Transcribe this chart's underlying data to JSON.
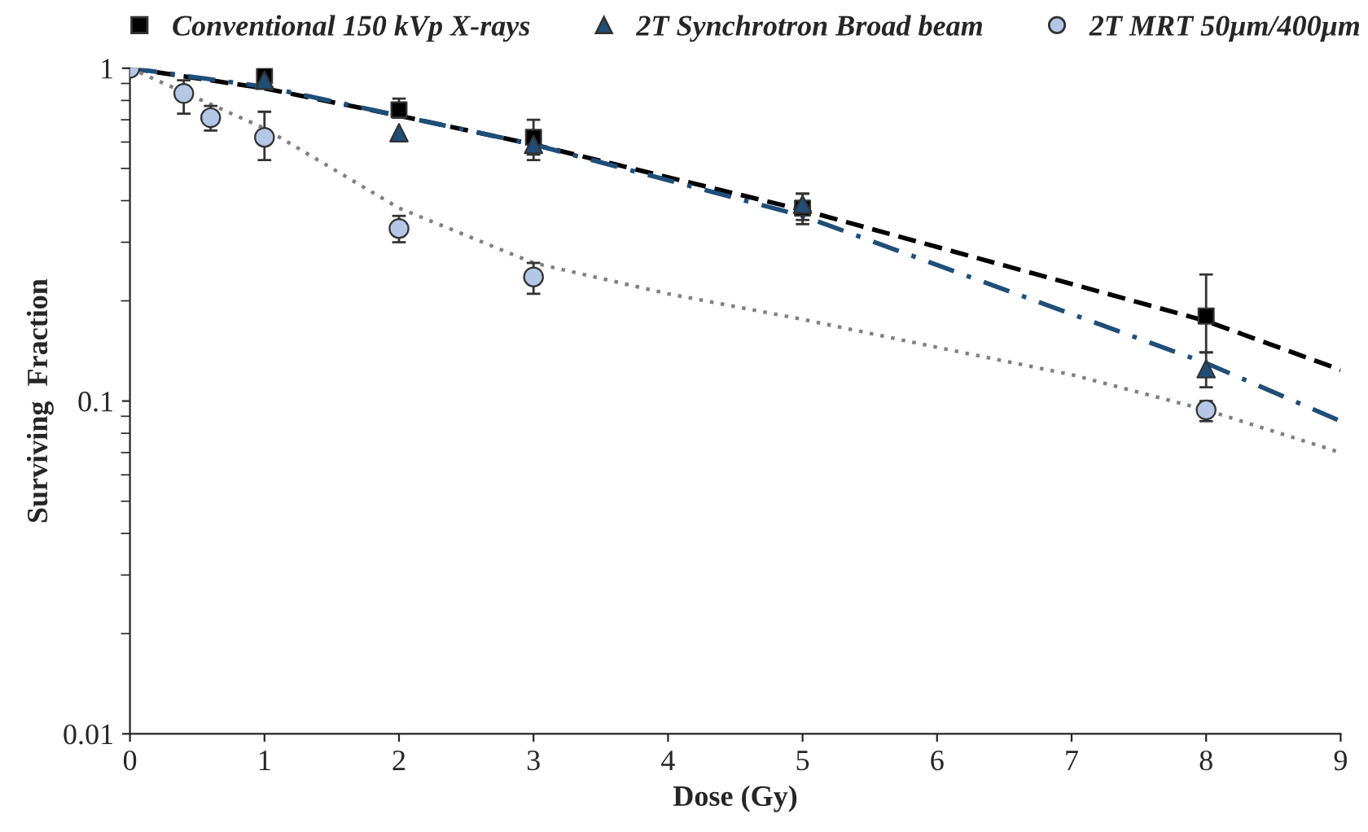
{
  "chart_data": {
    "type": "scatter",
    "xlabel": "Dose (Gy)",
    "ylabel": "Surviving  Fraction",
    "log": "y",
    "grid": false,
    "legend": "top",
    "xlim": [
      0,
      9
    ],
    "xticks": [
      0,
      1,
      2,
      3,
      4,
      5,
      6,
      7,
      8,
      9
    ],
    "ylim": [
      0.01,
      1
    ],
    "yticks": [
      0.01,
      0.1,
      1
    ],
    "series": [
      {
        "name": "Conventional 150 kVp X-rays",
        "marker": "square",
        "color": "#000000",
        "x": [
          1,
          2,
          3,
          5,
          8
        ],
        "values": [
          0.95,
          0.75,
          0.62,
          0.38,
          0.18
        ],
        "errors": [
          null,
          [
            0.71,
            0.81
          ],
          [
            0.53,
            0.7
          ],
          [
            0.34,
            0.42
          ],
          [
            0.14,
            0.24
          ]
        ]
      },
      {
        "name": "2T Synchrotron Broad beam",
        "marker": "triangle",
        "color": "#1f4e79",
        "x": [
          1,
          2,
          3,
          5,
          8
        ],
        "values": [
          0.92,
          0.64,
          0.59,
          0.39,
          0.125
        ],
        "errors": [
          null,
          null,
          [
            0.55,
            0.63
          ],
          [
            0.35,
            0.42
          ],
          [
            0.11,
            0.14
          ]
        ]
      },
      {
        "name": "2T MRT 50μm/400μm",
        "marker": "circle",
        "color": "#b4c7e7",
        "x": [
          0,
          0.4,
          0.6,
          1,
          2,
          3,
          8
        ],
        "values": [
          1,
          0.84,
          0.71,
          0.62,
          0.33,
          0.236,
          0.094
        ],
        "errors": [
          null,
          [
            0.73,
            0.92
          ],
          [
            0.65,
            0.77
          ],
          [
            0.53,
            0.74
          ],
          [
            0.3,
            0.36
          ],
          [
            0.21,
            0.26
          ],
          [
            0.087,
            0.1
          ]
        ]
      },
      {
        "type": "line",
        "line_style": "dashed",
        "color": "#000000",
        "x": [
          0,
          1,
          2,
          3,
          5,
          8,
          9
        ],
        "values": [
          1,
          0.87,
          0.72,
          0.59,
          0.375,
          0.174,
          0.124
        ]
      },
      {
        "type": "line",
        "line_style": "dashdot",
        "color": "#1f4e79",
        "x": [
          0,
          1,
          2,
          3,
          5,
          8,
          9
        ],
        "values": [
          1,
          0.88,
          0.72,
          0.59,
          0.36,
          0.13,
          0.087
        ]
      },
      {
        "type": "line",
        "line_style": "dotted",
        "color": "#808080",
        "x": [
          0,
          1,
          2,
          3,
          4,
          5,
          6,
          7,
          8,
          9
        ],
        "values": [
          1,
          0.66,
          0.38,
          0.26,
          0.21,
          0.176,
          0.145,
          0.12,
          0.094,
          0.07
        ]
      }
    ]
  }
}
